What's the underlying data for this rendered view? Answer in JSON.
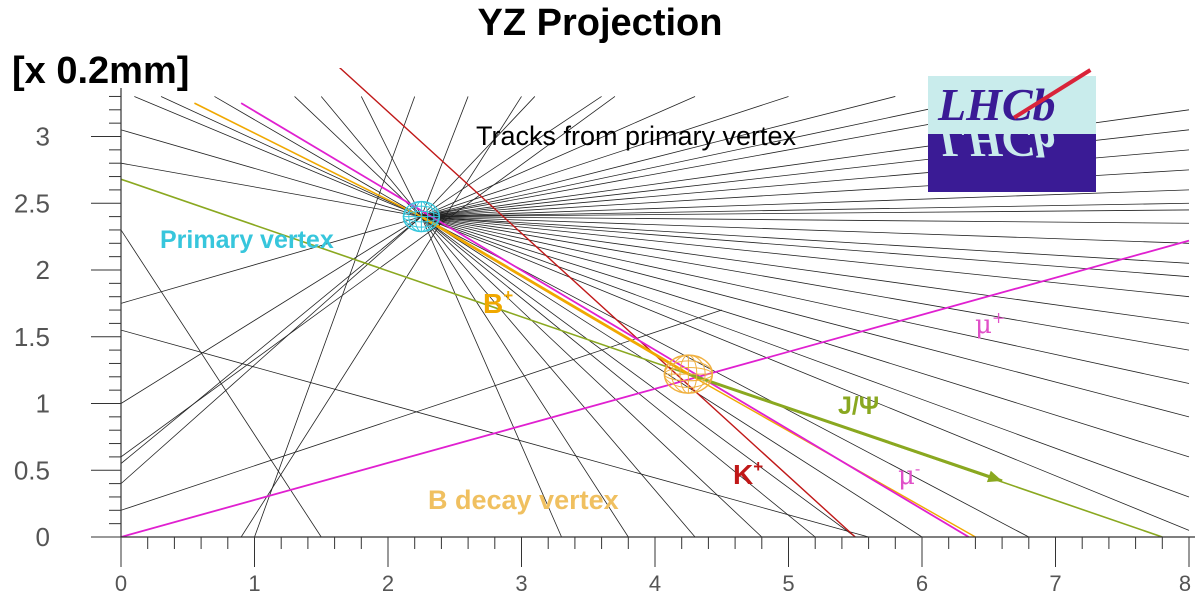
{
  "title": "YZ Projection",
  "units": "[x 0.2mm]",
  "logo_text": "LHCb",
  "axes": {
    "x_ticks": [
      "0",
      "1",
      "2",
      "3",
      "4",
      "5",
      "6",
      "7",
      "8"
    ],
    "y_ticks": [
      "0",
      "0.5",
      "1",
      "1.5",
      "2",
      "2.5",
      "3"
    ],
    "xlim": [
      0,
      8
    ],
    "ylim": [
      0,
      3.3
    ]
  },
  "labels": {
    "tracks": "Tracks from primary vertex",
    "primary_vertex": "Primary vertex",
    "b_plus": "B+",
    "mu_plus": "μ+",
    "jpsi": "J/Ψ",
    "k_plus": "K+",
    "mu_minus": "μ-",
    "b_decay_vertex": "B decay vertex"
  },
  "colors": {
    "tracks": "#222222",
    "b_plus": "#f0a800",
    "muon": "#e020d0",
    "jpsi": "#8aa820",
    "kaon": "#c01818",
    "primary_vertex": "#37c6dc",
    "b_vertex": "#f0b040",
    "logo_bg": "#c9ecec",
    "logo_text": "#3a1b95"
  },
  "primary_vertex": {
    "x": 2.25,
    "y": 2.4
  },
  "decay_vertex": {
    "x": 4.25,
    "y": 1.22
  },
  "primary_tracks": [
    [
      0.1,
      3.3
    ],
    [
      0.3,
      3.3
    ],
    [
      0.7,
      3.3
    ],
    [
      0.0,
      3.05
    ],
    [
      0.0,
      2.8
    ],
    [
      0.0,
      1.75
    ],
    [
      0.0,
      1.0
    ],
    [
      0.0,
      0.4
    ],
    [
      0.0,
      0.55
    ],
    [
      1.3,
      3.3
    ],
    [
      1.5,
      3.3
    ],
    [
      3.3,
      0.0
    ],
    [
      3.8,
      0.0
    ],
    [
      4.3,
      0.0
    ],
    [
      4.8,
      0.0
    ],
    [
      5.2,
      0.0
    ],
    [
      5.5,
      0.0
    ],
    [
      6.0,
      0.0
    ],
    [
      6.8,
      0.0
    ],
    [
      8.0,
      0.05
    ],
    [
      8.0,
      0.3
    ],
    [
      8.0,
      0.6
    ],
    [
      8.0,
      0.9
    ],
    [
      8.0,
      1.15
    ],
    [
      8.0,
      1.4
    ],
    [
      8.0,
      1.6
    ],
    [
      8.0,
      1.8
    ],
    [
      8.0,
      1.95
    ],
    [
      8.0,
      2.05
    ],
    [
      8.0,
      2.2
    ],
    [
      8.0,
      2.35
    ],
    [
      8.0,
      2.45
    ],
    [
      8.0,
      2.5
    ],
    [
      8.0,
      2.6
    ],
    [
      8.0,
      2.75
    ],
    [
      8.0,
      2.9
    ],
    [
      8.0,
      3.05
    ],
    [
      8.0,
      3.2
    ],
    [
      7.2,
      3.3
    ],
    [
      6.5,
      3.3
    ],
    [
      5.8,
      3.3
    ],
    [
      5.0,
      3.3
    ],
    [
      4.3,
      3.3
    ],
    [
      3.6,
      3.3
    ],
    [
      3.1,
      3.3
    ],
    [
      2.6,
      3.3
    ],
    [
      1.8,
      3.3
    ]
  ],
  "other_tracks": [
    [
      [
        0.0,
        1.55
      ],
      [
        5.6,
        0.0
      ]
    ],
    [
      [
        0.0,
        0.6
      ],
      [
        3.7,
        3.3
      ]
    ],
    [
      [
        0.0,
        0.2
      ],
      [
        4.5,
        1.7
      ]
    ],
    [
      [
        0.0,
        2.3
      ],
      [
        1.5,
        0.0
      ]
    ],
    [
      [
        0.9,
        0.0
      ],
      [
        3.0,
        3.3
      ]
    ],
    [
      [
        1.0,
        0.0
      ],
      [
        2.2,
        3.3
      ]
    ]
  ],
  "particles": {
    "b_plus": [
      [
        2.25,
        2.4
      ],
      [
        4.25,
        1.22
      ]
    ],
    "b_plus_ext": [
      [
        0.55,
        3.25
      ],
      [
        2.25,
        2.4
      ]
    ],
    "mu_plus": [
      [
        0.0,
        0.0
      ],
      [
        8.0,
        2.22
      ]
    ],
    "mu_minus": [
      [
        0.9,
        3.25
      ],
      [
        6.35,
        0.0
      ]
    ],
    "k_plus": [
      [
        1.6,
        3.55
      ],
      [
        5.5,
        0.0
      ]
    ],
    "jpsi_line": [
      [
        0.0,
        2.68
      ],
      [
        7.8,
        0.0
      ]
    ],
    "jpsi_arrow": [
      [
        4.25,
        1.22
      ],
      [
        6.6,
        0.42
      ]
    ],
    "k_plus_low": [
      [
        4.25,
        1.22
      ],
      [
        6.4,
        0.0
      ]
    ]
  }
}
